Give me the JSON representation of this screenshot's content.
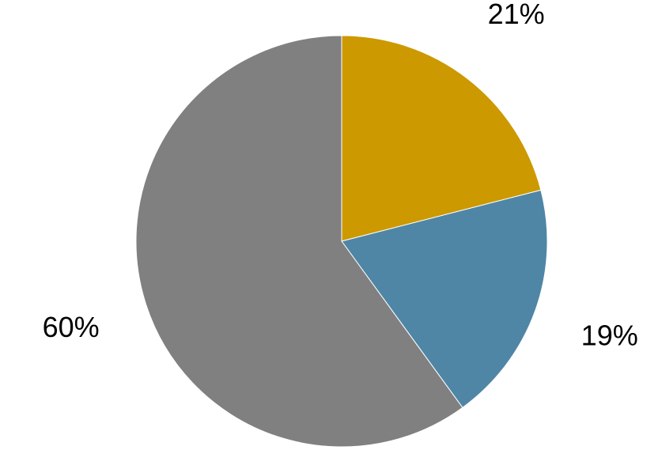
{
  "chart_data": {
    "type": "pie",
    "values": [
      21,
      19,
      60
    ],
    "value_labels": [
      "21%",
      "19%",
      "60%"
    ],
    "colors": [
      "#cc9900",
      "#4f86a6",
      "#808080"
    ],
    "start_angle": 0,
    "direction": "clockwise"
  }
}
